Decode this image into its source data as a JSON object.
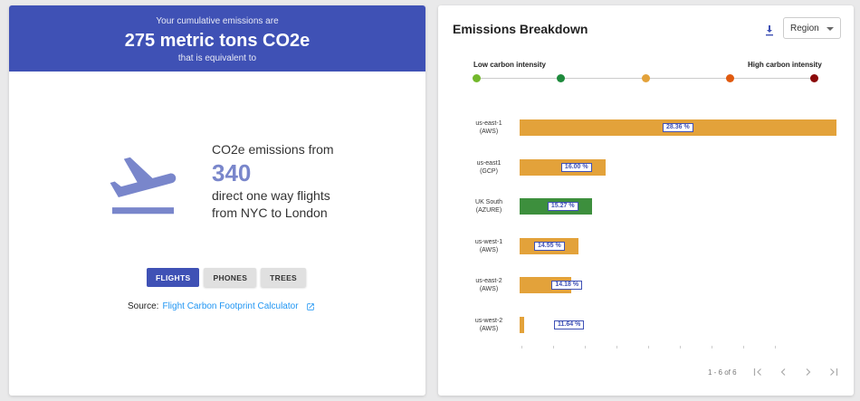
{
  "summary": {
    "prefix": "Your cumulative emissions are",
    "value": "275 metric tons CO2e",
    "suffix": "that is equivalent to"
  },
  "equivalent": {
    "line1": "CO2e emissions from",
    "number": "340",
    "line2": "direct one way flights",
    "line3": "from NYC to London",
    "icon": "flight-takeoff-icon"
  },
  "tabs": [
    {
      "label": "FLIGHTS",
      "active": true
    },
    {
      "label": "PHONES",
      "active": false
    },
    {
      "label": "TREES",
      "active": false
    }
  ],
  "source": {
    "label": "Source:",
    "link_text": "Flight Carbon Footprint Calculator"
  },
  "breakdown": {
    "title": "Emissions Breakdown",
    "select_value": "Region",
    "low_label": "Low carbon intensity",
    "high_label": "High carbon intensity",
    "intensity_colors": [
      "#73b82c",
      "#1e8a3c",
      "#e3a23a",
      "#e05a0f",
      "#8b0a0a"
    ]
  },
  "chart_data": {
    "type": "bar",
    "orientation": "horizontal",
    "categories": [
      "us-east-1 (AWS)",
      "us-east1 (GCP)",
      "UK South (AZURE)",
      "us-west-1 (AWS)",
      "us-east-2 (AWS)",
      "us-west-2 (AWS)"
    ],
    "region_lines": [
      [
        "us-east-1",
        "(AWS)"
      ],
      [
        "us-east1",
        "(GCP)"
      ],
      [
        "UK South",
        "(AZURE)"
      ],
      [
        "us-west-1",
        "(AWS)"
      ],
      [
        "us-east-2",
        "(AWS)"
      ],
      [
        "us-west-2",
        "(AWS)"
      ]
    ],
    "values": [
      28.36,
      16.0,
      15.27,
      14.55,
      14.18,
      11.64
    ],
    "value_labels": [
      "28.36 %",
      "16.00 %",
      "15.27 %",
      "14.55 %",
      "14.18 %",
      "11.64 %"
    ],
    "bar_colors": [
      "#e3a23a",
      "#e3a23a",
      "#3d8f3d",
      "#e3a23a",
      "#e3a23a",
      "#e3a23a"
    ],
    "xlim": [
      11.4,
      28.36
    ]
  },
  "pagination": {
    "range": "1 - 6 of 6"
  }
}
